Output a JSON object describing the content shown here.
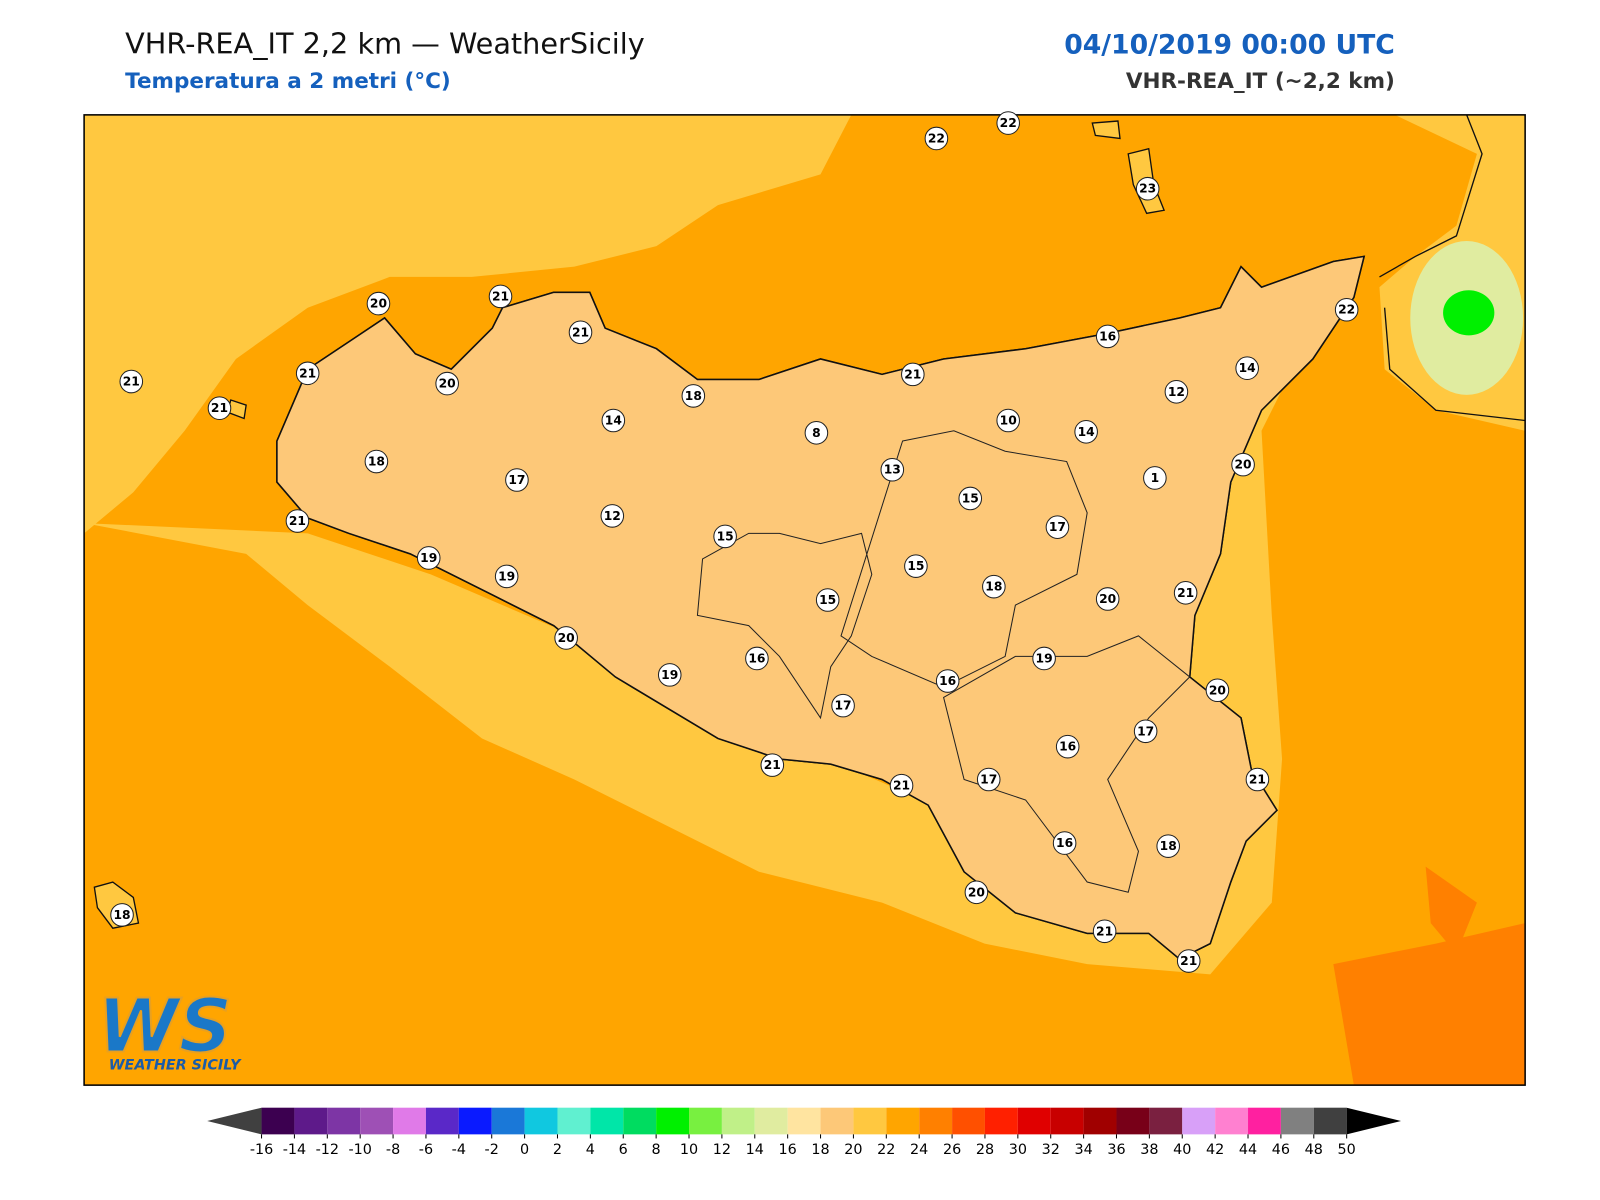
{
  "header": {
    "title": "VHR-REA_IT 2,2 km — WeatherSicily",
    "subtitle": "Temperatura a 2 metri (°C)",
    "datetime": "04/10/2019 00:00 UTC",
    "model": "VHR-REA_IT (~2,2 km)"
  },
  "station_values": [
    21,
    21,
    21,
    20,
    21,
    21,
    20,
    18,
    21,
    19,
    17,
    19,
    14,
    18,
    12,
    15,
    8,
    21,
    13,
    22,
    22,
    23,
    16,
    14,
    22,
    12,
    10,
    14,
    1,
    20,
    15,
    17,
    15,
    18,
    20,
    21,
    15,
    20,
    19,
    16,
    17,
    16,
    19,
    20,
    17,
    16,
    21,
    21,
    21,
    17,
    16,
    18,
    20,
    21,
    21,
    18
  ],
  "colorbar": {
    "ticks": [
      -16,
      -14,
      -12,
      -10,
      -8,
      -6,
      -4,
      -2,
      0,
      2,
      4,
      6,
      8,
      10,
      12,
      14,
      16,
      18,
      20,
      22,
      24,
      26,
      28,
      30,
      32,
      34,
      36,
      38,
      40,
      42,
      44,
      46,
      48,
      50
    ],
    "colors": [
      "#3c0050",
      "#5e1a8a",
      "#7d35a5",
      "#9e50b5",
      "#e07ae8",
      "#5a28c8",
      "#0a1aff",
      "#1a78d8",
      "#10c8e0",
      "#60f0d0",
      "#00e6a8",
      "#00dc60",
      "#00f000",
      "#78f040",
      "#c0f088",
      "#e0eca0",
      "#ffe4a0",
      "#fdc878",
      "#ffc840",
      "#ffa500",
      "#ff8000",
      "#ff5000",
      "#ff2000",
      "#e00000",
      "#c80000",
      "#a00000",
      "#780018",
      "#7a2040",
      "#d8a0f8",
      "#ff80d0",
      "#ff20a0",
      "#808080",
      "#404040"
    ],
    "extend_low_color": "#404040",
    "extend_high_color": "#000000"
  },
  "logo": {
    "letters": "WS",
    "text": "WEATHER SICILY"
  }
}
